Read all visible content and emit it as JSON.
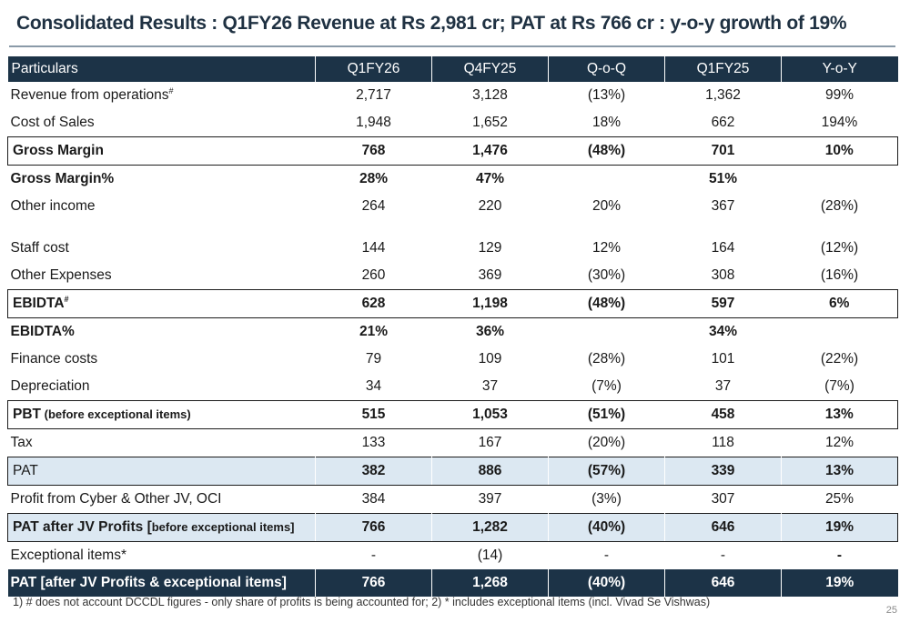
{
  "title": "Consolidated Results : Q1FY26 Revenue at Rs 2,981 cr; PAT at Rs 766 cr : y-o-y growth of 19%",
  "headers": [
    "Particulars",
    "Q1FY26",
    "Q4FY25",
    "Q-o-Q",
    "Q1FY25",
    "Y-o-Y"
  ],
  "rows": [
    {
      "label": "Revenue from  operations",
      "sup": "#",
      "values": [
        "2,717",
        "3,128",
        "(13%)",
        "1,362",
        "99%"
      ]
    },
    {
      "label": "Cost of Sales",
      "values": [
        "1,948",
        "1,652",
        "18%",
        "662",
        "194%"
      ]
    },
    {
      "label": "Gross Margin",
      "values": [
        "768",
        "1,476",
        "(48%)",
        "701",
        "10%"
      ]
    },
    {
      "label": "Gross Margin%",
      "values": [
        "28%",
        "47%",
        "",
        "51%",
        ""
      ]
    },
    {
      "label": "Other income",
      "values": [
        "264",
        "220",
        "20%",
        "367",
        "(28%)"
      ]
    },
    {
      "label": "Staff cost",
      "values": [
        "144",
        "129",
        "12%",
        "164",
        "(12%)"
      ]
    },
    {
      "label": "Other Expenses",
      "values": [
        "260",
        "369",
        "(30%)",
        "308",
        "(16%)"
      ]
    },
    {
      "label": "EBIDTA",
      "sup": "#",
      "values": [
        "628",
        "1,198",
        "(48%)",
        "597",
        "6%"
      ]
    },
    {
      "label": "EBIDTA%",
      "values": [
        "21%",
        "36%",
        "",
        "34%",
        ""
      ]
    },
    {
      "label": "Finance costs",
      "values": [
        "79",
        "109",
        "(28%)",
        "101",
        "(22%)"
      ]
    },
    {
      "label": "Depreciation",
      "values": [
        "34",
        "37",
        "(7%)",
        "37",
        "(7%)"
      ]
    },
    {
      "label": "PBT",
      "sub": " (before exceptional items)",
      "values": [
        "515",
        "1,053",
        "(51%)",
        "458",
        "13%"
      ]
    },
    {
      "label": "Tax",
      "values": [
        "133",
        "167",
        "(20%)",
        "118",
        "12%"
      ]
    },
    {
      "label": "PAT",
      "values": [
        "382",
        "886",
        "(57%)",
        "339",
        "13%"
      ]
    },
    {
      "label": "Profit from Cyber & Other JV, OCI",
      "values": [
        "384",
        "397",
        "(3%)",
        "307",
        "25%"
      ]
    },
    {
      "label": "PAT  after JV Profits [",
      "sub": "before exceptional items]",
      "values": [
        "766",
        "1,282",
        "(40%)",
        "646",
        "19%"
      ]
    },
    {
      "label": "Exceptional items*",
      "values": [
        "-",
        "(14)",
        "-",
        "-",
        "-"
      ]
    },
    {
      "label": "PAT  [after JV Profits & exceptional items]",
      "values": [
        "766",
        "1,268",
        "(40%)",
        "646",
        "19%"
      ]
    }
  ],
  "footnote": "1) # does not account DCCDL figures - only share of profits is being accounted for; 2) * includes exceptional items (incl. Vivad Se Vishwas)",
  "page_number": "25"
}
